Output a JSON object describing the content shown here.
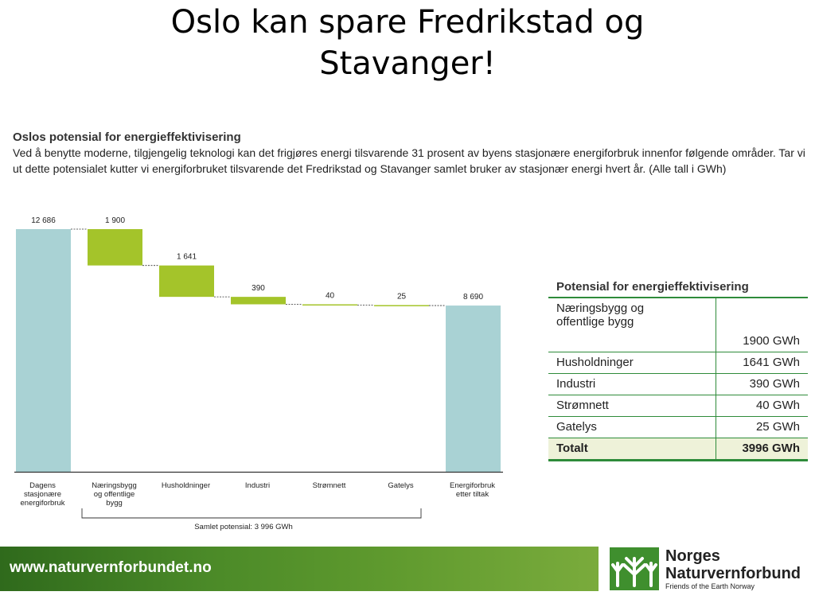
{
  "slide": {
    "title_line1": "Oslo kan spare Fredrikstad og",
    "title_line2": "Stavanger!"
  },
  "chart_heading": "Oslos potensial for energieffektivisering",
  "chart_intro": "Ved å benytte moderne, tilgjengelig teknologi kan det frigjøres energi tilsvarende 31 prosent av byens stasjonære energiforbruk innenfor følgende områder. Tar vi ut dette potensialet kutter vi energiforbruket tilsvarende det Fredrikstad og Stavanger samlet bruker av stasjonær energi hvert år. (Alle tall i GWh)",
  "chart_data": {
    "type": "bar",
    "subtype": "waterfall",
    "categories": [
      [
        "Dagens",
        "stasjonære",
        "energiforbruk"
      ],
      [
        "Næringsbygg",
        "og offentlige",
        "bygg"
      ],
      [
        "Husholdninger"
      ],
      [
        "Industri"
      ],
      [
        "Strømnett"
      ],
      [
        "Gatelys"
      ],
      [
        "Energiforbruk",
        "etter tiltak"
      ]
    ],
    "values": [
      12686,
      -1900,
      -1641,
      -390,
      -40,
      -25,
      8690
    ],
    "value_labels": [
      "12 686",
      "1 900",
      "1 641",
      "390",
      "40",
      "25",
      "8 690"
    ],
    "kinds": [
      "total",
      "decrease",
      "decrease",
      "decrease",
      "decrease",
      "decrease",
      "total"
    ],
    "ylim": [
      0,
      12686
    ],
    "bracket_label": "Samlet potensial: 3 996 GWh",
    "colors": {
      "total": "#a9d2d4",
      "decrease": "#a4c42a",
      "axis": "#333333"
    }
  },
  "table": {
    "title": "Potensial for energieffektivisering",
    "rows": [
      {
        "label_line1": "Næringsbygg og",
        "label_line2": "offentlige bygg",
        "value": "1900 GWh"
      },
      {
        "label": "Husholdninger",
        "value": "1641 GWh"
      },
      {
        "label": "Industri",
        "value": "390 GWh"
      },
      {
        "label": "Strømnett",
        "value": "40 GWh"
      },
      {
        "label": "Gatelys",
        "value": "25 GWh"
      }
    ],
    "total": {
      "label": "Totalt",
      "value": "3996 GWh"
    }
  },
  "footer": {
    "url": "www.naturvernforbundet.no"
  },
  "logo": {
    "name_line1": "Norges",
    "name_line2": "Naturvernforbund",
    "tagline": "Friends of the Earth Norway",
    "color": "#3f8f2e"
  }
}
